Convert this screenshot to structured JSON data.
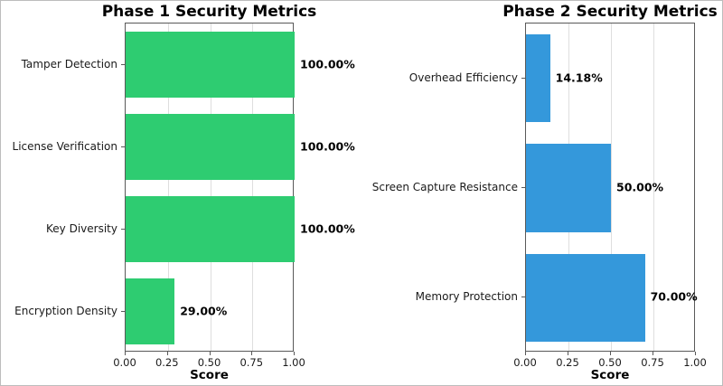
{
  "figure": {
    "background": "#ffffff",
    "border_color": "#bdbdbd",
    "spine_color": "#595959",
    "grid_color": "#dedede"
  },
  "chart_data": [
    {
      "type": "bar",
      "orientation": "horizontal",
      "title": "Phase 1 Security Metrics",
      "xlabel": "Score",
      "categories": [
        "Tamper Detection",
        "License Verification",
        "Key Diversity",
        "Encryption Density"
      ],
      "values": [
        1.0,
        1.0,
        1.0,
        0.29
      ],
      "value_labels": [
        "100.00%",
        "100.00%",
        "100.00%",
        "29.00%"
      ],
      "bar_color": "#2ecc71",
      "xlim": [
        0,
        1
      ],
      "xticks": [
        0,
        0.25,
        0.5,
        0.75,
        1.0
      ],
      "xtick_labels": [
        "0.00",
        "0.25",
        "0.50",
        "0.75",
        "1.00"
      ],
      "grid": true,
      "legend": false
    },
    {
      "type": "bar",
      "orientation": "horizontal",
      "title": "Phase 2 Security Metrics",
      "xlabel": "Score",
      "categories": [
        "Overhead Efficiency",
        "Screen Capture Resistance",
        "Memory Protection"
      ],
      "values": [
        0.1418,
        0.5,
        0.7
      ],
      "value_labels": [
        "14.18%",
        "50.00%",
        "70.00%"
      ],
      "bar_color": "#3498db",
      "xlim": [
        0,
        1
      ],
      "xticks": [
        0,
        0.25,
        0.5,
        0.75,
        1.0
      ],
      "xtick_labels": [
        "0.00",
        "0.25",
        "0.50",
        "0.75",
        "1.00"
      ],
      "grid": true,
      "legend": false
    }
  ]
}
